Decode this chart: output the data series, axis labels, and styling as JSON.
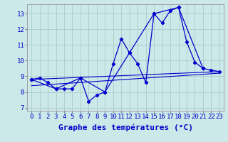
{
  "xlabel": "Graphe des températures (°C)",
  "background_color": "#cce8e8",
  "line_color": "#0000cc",
  "grid_color": "#aacccc",
  "xlim": [
    -0.5,
    23.5
  ],
  "ylim": [
    6.8,
    13.6
  ],
  "yticks": [
    7,
    8,
    9,
    10,
    11,
    12,
    13
  ],
  "xticks": [
    0,
    1,
    2,
    3,
    4,
    5,
    6,
    7,
    8,
    9,
    10,
    11,
    12,
    13,
    14,
    15,
    16,
    17,
    18,
    19,
    20,
    21,
    22,
    23
  ],
  "series1_x": [
    0,
    1,
    2,
    3,
    4,
    5,
    6,
    7,
    8,
    9,
    10,
    11,
    12,
    13,
    14,
    15,
    16,
    17,
    18,
    19,
    20,
    21,
    22,
    23
  ],
  "series1_y": [
    8.8,
    8.9,
    8.6,
    8.2,
    8.2,
    8.2,
    8.9,
    7.4,
    7.8,
    8.0,
    9.8,
    11.4,
    10.5,
    9.8,
    8.6,
    13.0,
    12.4,
    13.2,
    13.4,
    11.2,
    9.9,
    9.5,
    9.4,
    9.3
  ],
  "series2_x": [
    0,
    3,
    6,
    9,
    12,
    15,
    18,
    21
  ],
  "series2_y": [
    8.8,
    8.2,
    8.9,
    8.0,
    10.5,
    13.0,
    13.4,
    9.5
  ],
  "series3_x": [
    0,
    23
  ],
  "series3_y": [
    8.8,
    9.3
  ],
  "series4_x": [
    0,
    23
  ],
  "series4_y": [
    8.4,
    9.2
  ],
  "xlabel_fontsize": 8,
  "tick_fontsize": 6.5
}
